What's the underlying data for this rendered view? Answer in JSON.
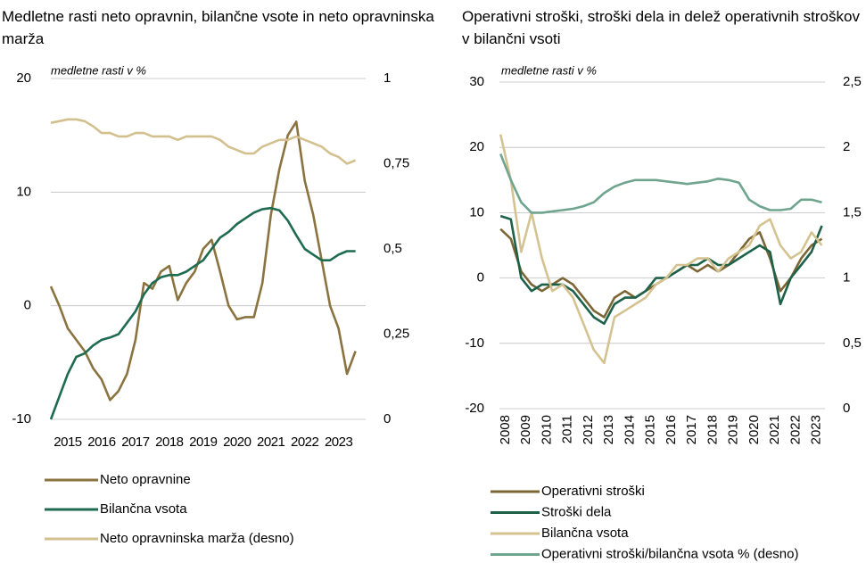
{
  "chart_data": [
    {
      "type": "line",
      "title": "Medletne rasti neto opravnin, bilančne vsote in neto opravninska marža",
      "subtitle": "medletne rasti v %",
      "x": [
        2014.5,
        2014.75,
        2015,
        2015.25,
        2015.5,
        2015.75,
        2016,
        2016.25,
        2016.5,
        2016.75,
        2017,
        2017.25,
        2017.5,
        2017.75,
        2018,
        2018.25,
        2018.5,
        2018.75,
        2019,
        2019.25,
        2019.5,
        2019.75,
        2020,
        2020.25,
        2020.5,
        2020.75,
        2021,
        2021.25,
        2021.5,
        2021.75,
        2022,
        2022.25,
        2022.5,
        2022.75,
        2023,
        2023.25,
        2023.5
      ],
      "xlim": [
        2014.5,
        2023.8
      ],
      "xticks": [
        2015,
        2016,
        2017,
        2018,
        2019,
        2020,
        2021,
        2022,
        2023
      ],
      "ylim": [
        -10,
        20
      ],
      "yticks": [
        -10,
        0,
        10,
        20
      ],
      "y2lim": [
        0,
        1
      ],
      "y2ticks": [
        0,
        {
          "value": 0.25,
          "label": "0,25"
        },
        {
          "value": 0.5,
          "label": "0,5"
        },
        {
          "value": 0.75,
          "label": "0,75"
        },
        1
      ],
      "grid": true,
      "series": [
        {
          "name": "Neto opravnine",
          "color": "#8b7340",
          "values": [
            1.7,
            0,
            -2,
            -3,
            -4,
            -5.5,
            -6.5,
            -8.3,
            -7.5,
            -6,
            -3,
            2,
            1.5,
            3,
            3.5,
            0.5,
            2,
            3,
            5,
            5.8,
            3,
            0,
            -1.2,
            -1,
            -1,
            2,
            8,
            12,
            15,
            16.2,
            11,
            8,
            4,
            0,
            -2,
            -6,
            -4
          ]
        },
        {
          "name": "Bilančna vsota",
          "color": "#1e6b4f",
          "values": [
            -10,
            -8,
            -6,
            -4.5,
            -4.2,
            -3.5,
            -3,
            -2.8,
            -2.5,
            -1.5,
            -0.5,
            1,
            2,
            2.5,
            2.7,
            2.7,
            3,
            3.5,
            4,
            5,
            6,
            6.5,
            7.2,
            7.7,
            8.2,
            8.5,
            8.6,
            8.4,
            7.5,
            6.2,
            5,
            4.5,
            4,
            4,
            4.5,
            4.8,
            4.8
          ]
        },
        {
          "name": "Neto opravninska marža (desno)",
          "color": "#d3c08f",
          "axis": "y2",
          "values": [
            0.87,
            0.875,
            0.88,
            0.88,
            0.875,
            0.86,
            0.84,
            0.84,
            0.83,
            0.83,
            0.84,
            0.84,
            0.83,
            0.83,
            0.83,
            0.82,
            0.83,
            0.83,
            0.83,
            0.83,
            0.82,
            0.8,
            0.79,
            0.78,
            0.78,
            0.8,
            0.81,
            0.82,
            0.82,
            0.83,
            0.82,
            0.81,
            0.8,
            0.78,
            0.77,
            0.75,
            0.76
          ]
        }
      ]
    },
    {
      "type": "line",
      "title": "Operativni stroški, stroški dela in delež operativnih stroškov v bilančni vsoti",
      "subtitle": "medletne rasti v %",
      "x": [
        2007.75,
        2008.25,
        2008.75,
        2009.25,
        2009.75,
        2010.25,
        2010.75,
        2011.25,
        2011.75,
        2012.25,
        2012.75,
        2013.25,
        2013.75,
        2014.25,
        2014.75,
        2015.25,
        2015.75,
        2016.25,
        2016.75,
        2017.25,
        2017.75,
        2018.25,
        2018.75,
        2019.25,
        2019.75,
        2020.25,
        2020.75,
        2021.25,
        2021.75,
        2022.25,
        2022.75,
        2023.25
      ],
      "xlim": [
        2007.7,
        2023.4
      ],
      "xticks": [
        2008,
        2009,
        2010,
        2011,
        2012,
        2013,
        2014,
        2015,
        2016,
        2017,
        2018,
        2019,
        2020,
        2021,
        2022,
        2023
      ],
      "ylim": [
        -20,
        30
      ],
      "yticks": [
        -20,
        -10,
        0,
        10,
        20,
        30
      ],
      "y2lim": [
        0,
        2.5
      ],
      "y2ticks": [
        0,
        {
          "value": 0.5,
          "label": "0,5"
        },
        1,
        {
          "value": 1.5,
          "label": "1,5"
        },
        2,
        {
          "value": 2.5,
          "label": "2,5"
        }
      ],
      "grid": true,
      "series": [
        {
          "name": "Operativni stroški",
          "color": "#7d6636",
          "values": [
            7.5,
            6,
            1,
            -1,
            -2,
            -1,
            0,
            -1,
            -3,
            -5,
            -6,
            -3,
            -2,
            -3,
            -2,
            -1,
            0,
            1,
            2,
            1,
            2,
            1,
            2,
            4,
            6,
            7,
            3,
            -2,
            0,
            3,
            5,
            6
          ]
        },
        {
          "name": "Stroški dela",
          "color": "#1d6148",
          "values": [
            9.5,
            9,
            0,
            -2,
            -1,
            -1,
            -1,
            -2,
            -4,
            -6,
            -7,
            -4,
            -3,
            -3,
            -2,
            0,
            0,
            1,
            2,
            2,
            3,
            2,
            2,
            3,
            4,
            5,
            4,
            -4,
            0,
            2,
            4,
            8
          ]
        },
        {
          "name": "Bilančna vsota",
          "color": "#d4c391",
          "values": [
            22,
            15,
            4,
            10,
            3,
            -2,
            -1,
            -3,
            -7,
            -11,
            -13,
            -6,
            -5,
            -4,
            -3,
            -1,
            0,
            2,
            2,
            3,
            3,
            1,
            3,
            4,
            5,
            8,
            9,
            5,
            3,
            4,
            7,
            5
          ]
        },
        {
          "name": "Operativni stroški/bilančna vsota  % (desno)",
          "color": "#6fa58e",
          "axis": "y2",
          "values": [
            1.95,
            1.75,
            1.58,
            1.5,
            1.5,
            1.51,
            1.52,
            1.53,
            1.55,
            1.58,
            1.65,
            1.7,
            1.73,
            1.75,
            1.75,
            1.75,
            1.74,
            1.73,
            1.72,
            1.73,
            1.74,
            1.76,
            1.75,
            1.73,
            1.6,
            1.55,
            1.52,
            1.52,
            1.53,
            1.6,
            1.6,
            1.58
          ]
        }
      ]
    }
  ]
}
